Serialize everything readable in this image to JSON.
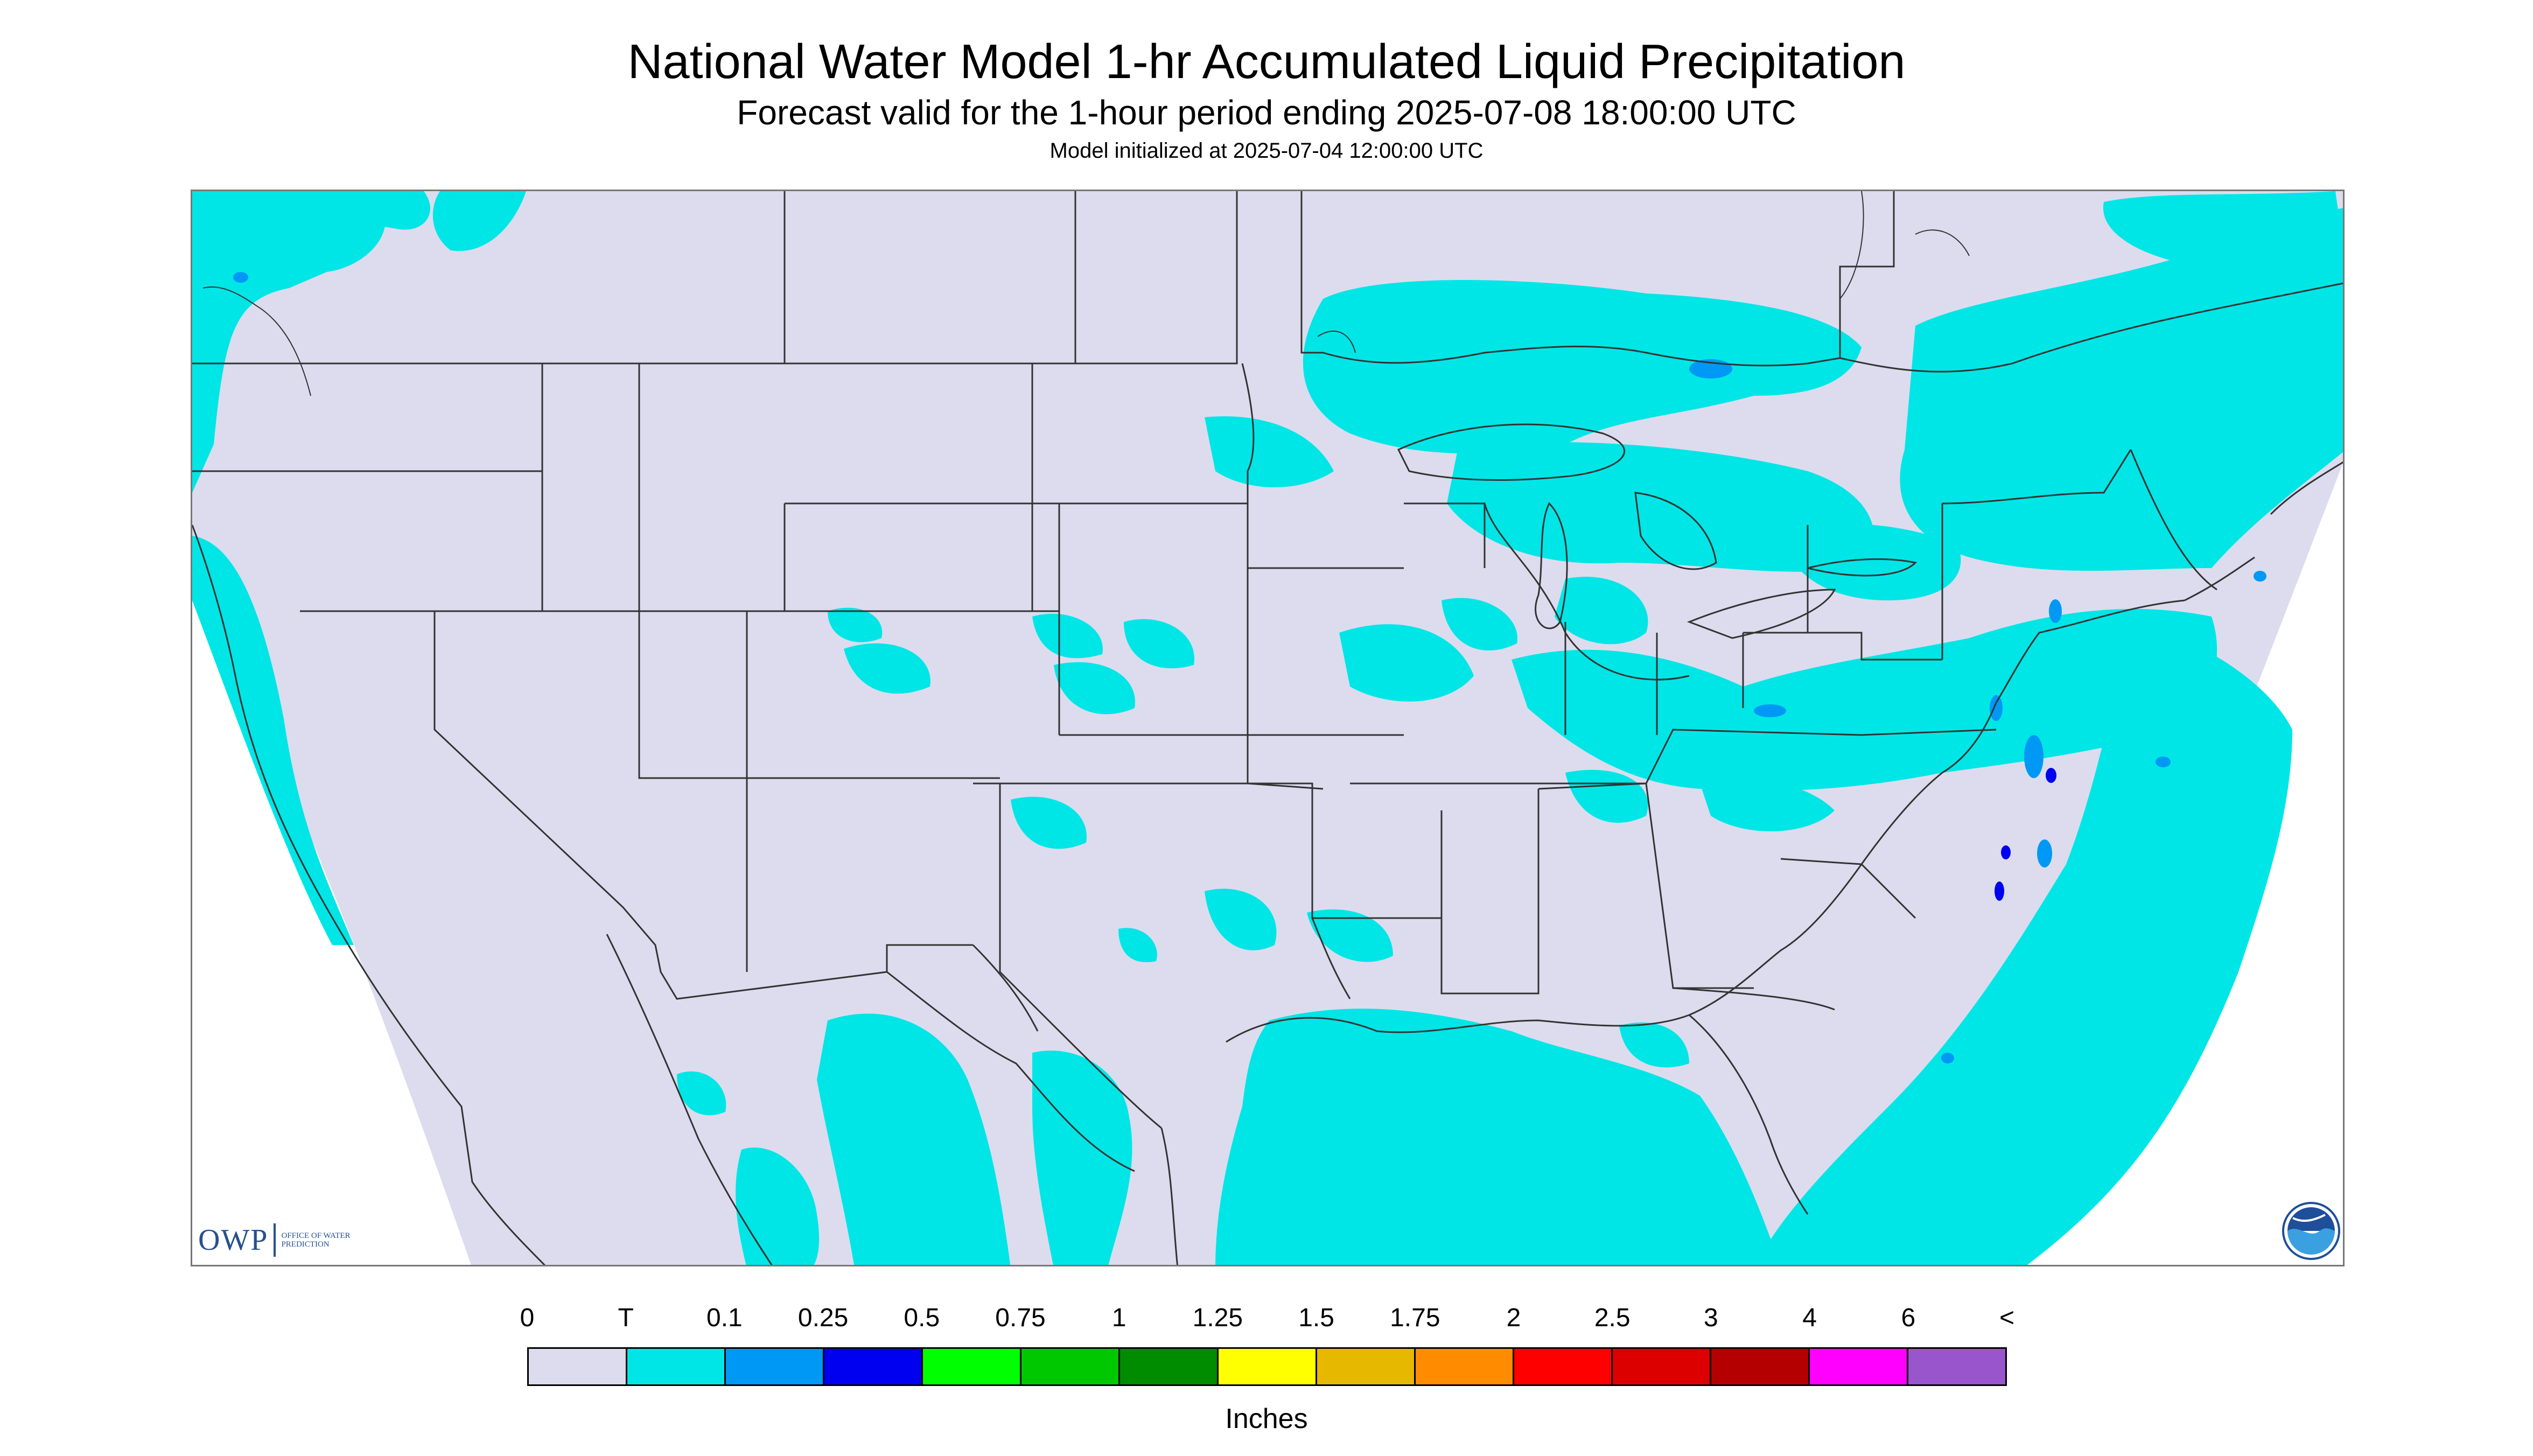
{
  "title": "National Water Model 1-hr Accumulated Liquid Precipitation",
  "subtitle": "Forecast valid for the 1-hour period ending 2025-07-08 18:00:00 UTC",
  "init_line": "Model initialized at 2025-07-04 12:00:00 UTC",
  "logo": {
    "mark": "OWP",
    "text": "OFFICE OF WATER PREDICTION",
    "agency_icon": "noaa-logo-icon"
  },
  "legend": {
    "units": "Inches",
    "labels": [
      "0",
      "T",
      "0.1",
      "0.25",
      "0.5",
      "0.75",
      "1",
      "1.25",
      "1.5",
      "1.75",
      "2",
      "2.5",
      "3",
      "4",
      "6",
      "<"
    ],
    "colors": [
      "#dcdcee",
      "#00e6e6",
      "#0098f5",
      "#0000f0",
      "#00ff00",
      "#00c800",
      "#008c00",
      "#ffff00",
      "#e6b800",
      "#ff8c00",
      "#ff0000",
      "#dc0000",
      "#b40000",
      "#ff00ff",
      "#9955cc"
    ]
  },
  "map": {
    "background_color": "#dcdcee",
    "boundary_color": "#333333",
    "precip_color_trace": "#00e6e6",
    "precip_color_light": "#0098f5",
    "precip_color_moderate": "#0000f0"
  }
}
